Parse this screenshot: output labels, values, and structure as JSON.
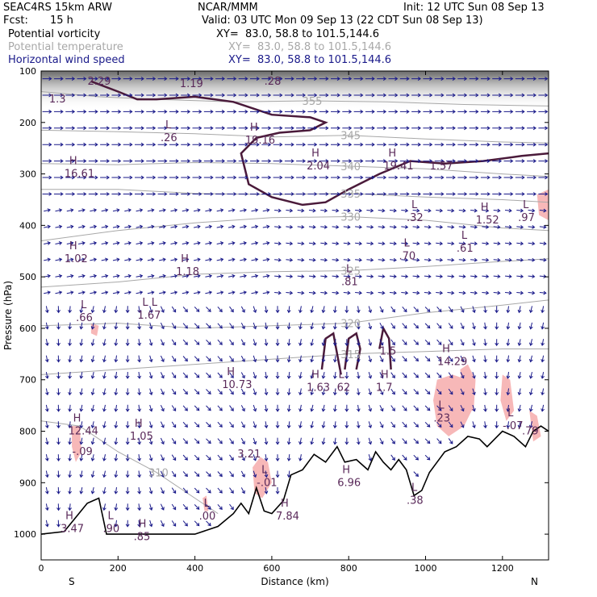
{
  "header": {
    "model": "SEAC4RS 15km ARW",
    "center": "NCAR/MMM",
    "init": "Init: 12 UTC Sun 08 Sep 13",
    "fcst_label": "Fcst:",
    "fcst_value": "15 h",
    "valid": "Valid: 03 UTC Mon 09 Sep 13 (22 CDT Sun 08 Sep 13)"
  },
  "legend": [
    {
      "name": "Potential vorticity",
      "xy": "XY=  83.0, 58.8 to 101.5,144.6",
      "color": "#000000"
    },
    {
      "name": "Potential temperature",
      "xy": "XY=  83.0, 58.8 to 101.5,144.6",
      "color": "#a8a8a8"
    },
    {
      "name": "Horizontal wind speed",
      "xy": "XY=  83.0, 58.8 to 101.5,144.6",
      "color": "#1a1a8a"
    }
  ],
  "chart_data": {
    "type": "cross-section",
    "xlabel": "Distance (km)",
    "ylabel": "Pressure (hPa)",
    "xlim": [
      0,
      1320
    ],
    "ylim": [
      1050,
      100
    ],
    "x_ticks": [
      0,
      200,
      400,
      600,
      800,
      1000,
      1200
    ],
    "y_ticks": [
      100,
      200,
      300,
      400,
      500,
      600,
      700,
      800,
      900,
      1000
    ],
    "left_end_label": "S",
    "right_end_label": "N",
    "colors": {
      "pv": "#4a1a3a",
      "theta": "#a8a8a8",
      "wind": "#1a1a8a",
      "terrain": "#000000",
      "positive": "#f7b8b8",
      "label": "#5a2a5a"
    },
    "terrain": [
      [
        0,
        1000
      ],
      [
        60,
        995
      ],
      [
        120,
        940
      ],
      [
        150,
        930
      ],
      [
        170,
        1000
      ],
      [
        200,
        1000
      ],
      [
        300,
        1000
      ],
      [
        400,
        1000
      ],
      [
        460,
        985
      ],
      [
        500,
        960
      ],
      [
        520,
        940
      ],
      [
        540,
        960
      ],
      [
        560,
        910
      ],
      [
        580,
        955
      ],
      [
        600,
        960
      ],
      [
        630,
        935
      ],
      [
        650,
        885
      ],
      [
        680,
        875
      ],
      [
        710,
        845
      ],
      [
        740,
        860
      ],
      [
        770,
        830
      ],
      [
        790,
        860
      ],
      [
        820,
        855
      ],
      [
        850,
        875
      ],
      [
        870,
        840
      ],
      [
        890,
        860
      ],
      [
        910,
        875
      ],
      [
        930,
        855
      ],
      [
        950,
        875
      ],
      [
        970,
        925
      ],
      [
        990,
        915
      ],
      [
        1010,
        880
      ],
      [
        1030,
        860
      ],
      [
        1050,
        840
      ],
      [
        1080,
        830
      ],
      [
        1110,
        810
      ],
      [
        1140,
        815
      ],
      [
        1160,
        830
      ],
      [
        1180,
        815
      ],
      [
        1200,
        800
      ],
      [
        1230,
        810
      ],
      [
        1260,
        830
      ],
      [
        1280,
        800
      ],
      [
        1300,
        790
      ],
      [
        1320,
        800
      ]
    ],
    "theta_contours": [
      {
        "label": "355",
        "points": [
          [
            0,
            140
          ],
          [
            150,
            150
          ],
          [
            300,
            155
          ],
          [
            500,
            160
          ],
          [
            700,
            158
          ],
          [
            900,
            160
          ],
          [
            1100,
            165
          ],
          [
            1320,
            168
          ]
        ]
      },
      {
        "label": "345",
        "points": [
          [
            0,
            215
          ],
          [
            200,
            218
          ],
          [
            400,
            222
          ],
          [
            600,
            228
          ],
          [
            800,
            225
          ],
          [
            1000,
            232
          ],
          [
            1200,
            238
          ],
          [
            1320,
            240
          ]
        ]
      },
      {
        "label": "340",
        "points": [
          [
            0,
            280
          ],
          [
            200,
            282
          ],
          [
            400,
            278
          ],
          [
            600,
            280
          ],
          [
            800,
            285
          ],
          [
            1000,
            290
          ],
          [
            1200,
            300
          ],
          [
            1320,
            305
          ]
        ]
      },
      {
        "label": "335",
        "points": [
          [
            0,
            330
          ],
          [
            200,
            330
          ],
          [
            400,
            338
          ],
          [
            600,
            340
          ],
          [
            800,
            338
          ],
          [
            1000,
            345
          ],
          [
            1200,
            350
          ],
          [
            1320,
            355
          ]
        ]
      },
      {
        "label": "330",
        "points": [
          [
            0,
            430
          ],
          [
            200,
            410
          ],
          [
            400,
            395
          ],
          [
            600,
            385
          ],
          [
            800,
            383
          ],
          [
            1000,
            390
          ],
          [
            1200,
            405
          ],
          [
            1320,
            410
          ]
        ]
      },
      {
        "label": "325",
        "points": [
          [
            0,
            520
          ],
          [
            200,
            510
          ],
          [
            400,
            495
          ],
          [
            600,
            490
          ],
          [
            800,
            488
          ],
          [
            1000,
            480
          ],
          [
            1200,
            470
          ],
          [
            1320,
            465
          ]
        ]
      },
      {
        "label": "320",
        "points": [
          [
            0,
            595
          ],
          [
            200,
            590
          ],
          [
            400,
            600
          ],
          [
            600,
            595
          ],
          [
            800,
            590
          ],
          [
            1000,
            570
          ],
          [
            1200,
            555
          ],
          [
            1320,
            545
          ]
        ]
      },
      {
        "label": "315",
        "points": [
          [
            0,
            690
          ],
          [
            200,
            680
          ],
          [
            400,
            670
          ],
          [
            600,
            660
          ],
          [
            800,
            650
          ],
          [
            1000,
            645
          ],
          [
            1200,
            640
          ],
          [
            1320,
            640
          ]
        ]
      },
      {
        "label": "310",
        "points": [
          [
            0,
            780
          ],
          [
            100,
            790
          ],
          [
            200,
            840
          ],
          [
            300,
            880
          ],
          [
            400,
            930
          ],
          [
            460,
            960
          ]
        ]
      }
    ],
    "pv_contours": [
      {
        "points": [
          [
            130,
            120
          ],
          [
            200,
            140
          ],
          [
            250,
            155
          ],
          [
            300,
            155
          ],
          [
            400,
            150
          ],
          [
            500,
            160
          ],
          [
            600,
            185
          ],
          [
            700,
            190
          ],
          [
            740,
            200
          ],
          [
            700,
            215
          ],
          [
            620,
            220
          ],
          [
            560,
            230
          ],
          [
            520,
            260
          ],
          [
            540,
            320
          ],
          [
            600,
            345
          ],
          [
            680,
            360
          ],
          [
            740,
            355
          ],
          [
            800,
            330
          ],
          [
            880,
            300
          ],
          [
            960,
            275
          ],
          [
            1050,
            280
          ],
          [
            1150,
            275
          ],
          [
            1250,
            265
          ],
          [
            1320,
            260
          ]
        ]
      },
      {
        "points": [
          [
            730,
            680
          ],
          [
            740,
            620
          ],
          [
            760,
            610
          ],
          [
            770,
            650
          ],
          [
            780,
            690
          ]
        ]
      },
      {
        "points": [
          [
            790,
            680
          ],
          [
            800,
            620
          ],
          [
            820,
            610
          ],
          [
            830,
            640
          ],
          [
            820,
            680
          ]
        ]
      },
      {
        "points": [
          [
            880,
            640
          ],
          [
            890,
            600
          ],
          [
            905,
            620
          ],
          [
            910,
            680
          ]
        ]
      }
    ],
    "positive_regions": [
      {
        "points": [
          [
            1030,
            700
          ],
          [
            1070,
            690
          ],
          [
            1110,
            700
          ],
          [
            1120,
            760
          ],
          [
            1100,
            790
          ],
          [
            1060,
            810
          ],
          [
            1030,
            790
          ],
          [
            1020,
            740
          ]
        ]
      },
      {
        "points": [
          [
            1090,
            680
          ],
          [
            1110,
            670
          ],
          [
            1130,
            700
          ],
          [
            1125,
            760
          ],
          [
            1100,
            760
          ]
        ]
      },
      {
        "points": [
          [
            1200,
            690
          ],
          [
            1220,
            700
          ],
          [
            1230,
            760
          ],
          [
            1210,
            780
          ],
          [
            1195,
            740
          ]
        ]
      },
      {
        "points": [
          [
            550,
            870
          ],
          [
            570,
            850
          ],
          [
            590,
            860
          ],
          [
            600,
            900
          ],
          [
            575,
            930
          ],
          [
            555,
            920
          ]
        ]
      },
      {
        "points": [
          [
            80,
            790
          ],
          [
            100,
            790
          ],
          [
            105,
            840
          ],
          [
            90,
            860
          ],
          [
            80,
            830
          ]
        ]
      },
      {
        "points": [
          [
            130,
            590
          ],
          [
            150,
            595
          ],
          [
            145,
            615
          ],
          [
            130,
            610
          ]
        ]
      },
      {
        "points": [
          [
            1290,
            340
          ],
          [
            1320,
            330
          ],
          [
            1320,
            390
          ],
          [
            1295,
            380
          ]
        ]
      },
      {
        "points": [
          [
            1270,
            760
          ],
          [
            1290,
            770
          ],
          [
            1300,
            810
          ],
          [
            1280,
            820
          ]
        ]
      },
      {
        "points": [
          [
            420,
            930
          ],
          [
            430,
            925
          ],
          [
            435,
            955
          ],
          [
            425,
            955
          ]
        ]
      }
    ],
    "hl_labels": [
      {
        "mark": "",
        "value": "2.29",
        "x": 150,
        "y": 120
      },
      {
        "mark": "",
        "value": "1.19",
        "x": 390,
        "y": 125
      },
      {
        "mark": "",
        "value": ".28",
        "x": 610,
        "y": 120
      },
      {
        "mark": "",
        "value": "1.3",
        "x": 50,
        "y": 155
      },
      {
        "mark": "L",
        "value": ".26",
        "x": 340,
        "y": 230
      },
      {
        "mark": "H",
        "value": "19.16",
        "x": 560,
        "y": 235
      },
      {
        "mark": "H",
        "value": "16.61",
        "x": 90,
        "y": 300
      },
      {
        "mark": "H",
        "value": "2.04",
        "x": 720,
        "y": 285
      },
      {
        "mark": "H",
        "value": "19.41",
        "x": 920,
        "y": 285
      },
      {
        "mark": "",
        "value": "1.57",
        "x": 1040,
        "y": 285
      },
      {
        "mark": "L",
        "value": ".32",
        "x": 980,
        "y": 385
      },
      {
        "mark": "H",
        "value": "1.52",
        "x": 1160,
        "y": 390
      },
      {
        "mark": "L",
        "value": ".97",
        "x": 1270,
        "y": 385
      },
      {
        "mark": "H",
        "value": "1.02",
        "x": 90,
        "y": 465
      },
      {
        "mark": "L",
        "value": ".70",
        "x": 960,
        "y": 460
      },
      {
        "mark": "L",
        "value": ".61",
        "x": 1110,
        "y": 445
      },
      {
        "mark": "H",
        "value": "1.18",
        "x": 380,
        "y": 490
      },
      {
        "mark": "L",
        "value": ".81",
        "x": 810,
        "y": 510
      },
      {
        "mark": "L",
        "value": ".66",
        "x": 120,
        "y": 580
      },
      {
        "mark": "L L",
        "value": "1.67",
        "x": 280,
        "y": 575
      },
      {
        "mark": "",
        "value": "1.5",
        "x": 910,
        "y": 645
      },
      {
        "mark": "H",
        "value": "14.29",
        "x": 1060,
        "y": 665
      },
      {
        "mark": "H",
        "value": "10.73",
        "x": 500,
        "y": 710
      },
      {
        "mark": "H",
        "value": "1.63",
        "x": 720,
        "y": 715
      },
      {
        "mark": "L",
        "value": ".62",
        "x": 790,
        "y": 715
      },
      {
        "mark": "H",
        "value": "1.7",
        "x": 900,
        "y": 715
      },
      {
        "mark": "L",
        "value": ".23",
        "x": 1050,
        "y": 775
      },
      {
        "mark": "L",
        "value": "-.07",
        "x": 1230,
        "y": 790
      },
      {
        "mark": "",
        "value": ".79",
        "x": 1280,
        "y": 800
      },
      {
        "mark": "H",
        "value": "12.44",
        "x": 100,
        "y": 800
      },
      {
        "mark": "H",
        "value": "1.05",
        "x": 260,
        "y": 810
      },
      {
        "mark": "",
        "value": "-.09",
        "x": 110,
        "y": 840
      },
      {
        "mark": "",
        "value": "3.21",
        "x": 540,
        "y": 845
      },
      {
        "mark": "L",
        "value": "-.01",
        "x": 590,
        "y": 900
      },
      {
        "mark": "H",
        "value": "6.96",
        "x": 800,
        "y": 900
      },
      {
        "mark": "L",
        "value": ".38",
        "x": 980,
        "y": 935
      },
      {
        "mark": "L",
        "value": ".00",
        "x": 440,
        "y": 965
      },
      {
        "mark": "H",
        "value": "7.84",
        "x": 640,
        "y": 965
      },
      {
        "mark": "H",
        "value": "3.47",
        "x": 80,
        "y": 990
      },
      {
        "mark": "L",
        "value": ".90",
        "x": 190,
        "y": 990
      },
      {
        "mark": "H",
        "value": ".85",
        "x": 270,
        "y": 1005
      }
    ]
  }
}
